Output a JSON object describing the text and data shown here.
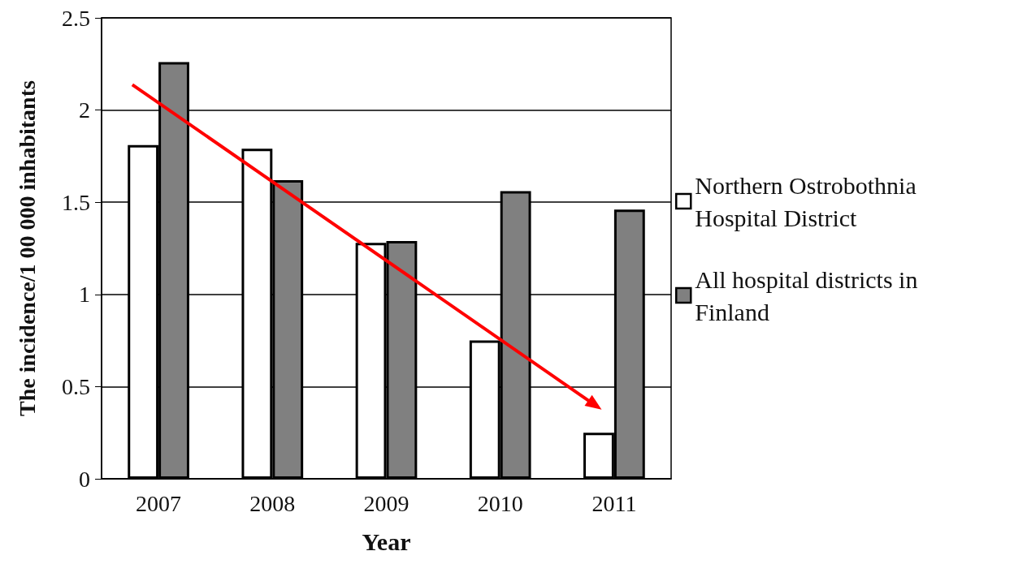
{
  "chart_data": {
    "type": "bar",
    "xlabel": "Year",
    "ylabel": "The incidence/1 00 000 inhabitants",
    "categories": [
      "2007",
      "2008",
      "2009",
      "2010",
      "2011"
    ],
    "series": [
      {
        "name": "Northern Ostrobothnia Hospital District",
        "color": "#ffffff",
        "values": [
          1.81,
          1.79,
          1.28,
          0.75,
          0.25
        ]
      },
      {
        "name": "All hospital districts in Finland",
        "color": "#808080",
        "values": [
          2.26,
          1.62,
          1.29,
          1.56,
          1.46
        ]
      }
    ],
    "ylim": [
      0,
      2.5
    ],
    "yticks": [
      0,
      0.5,
      1,
      1.5,
      2,
      2.5
    ],
    "grid": "y",
    "legend": "right"
  }
}
